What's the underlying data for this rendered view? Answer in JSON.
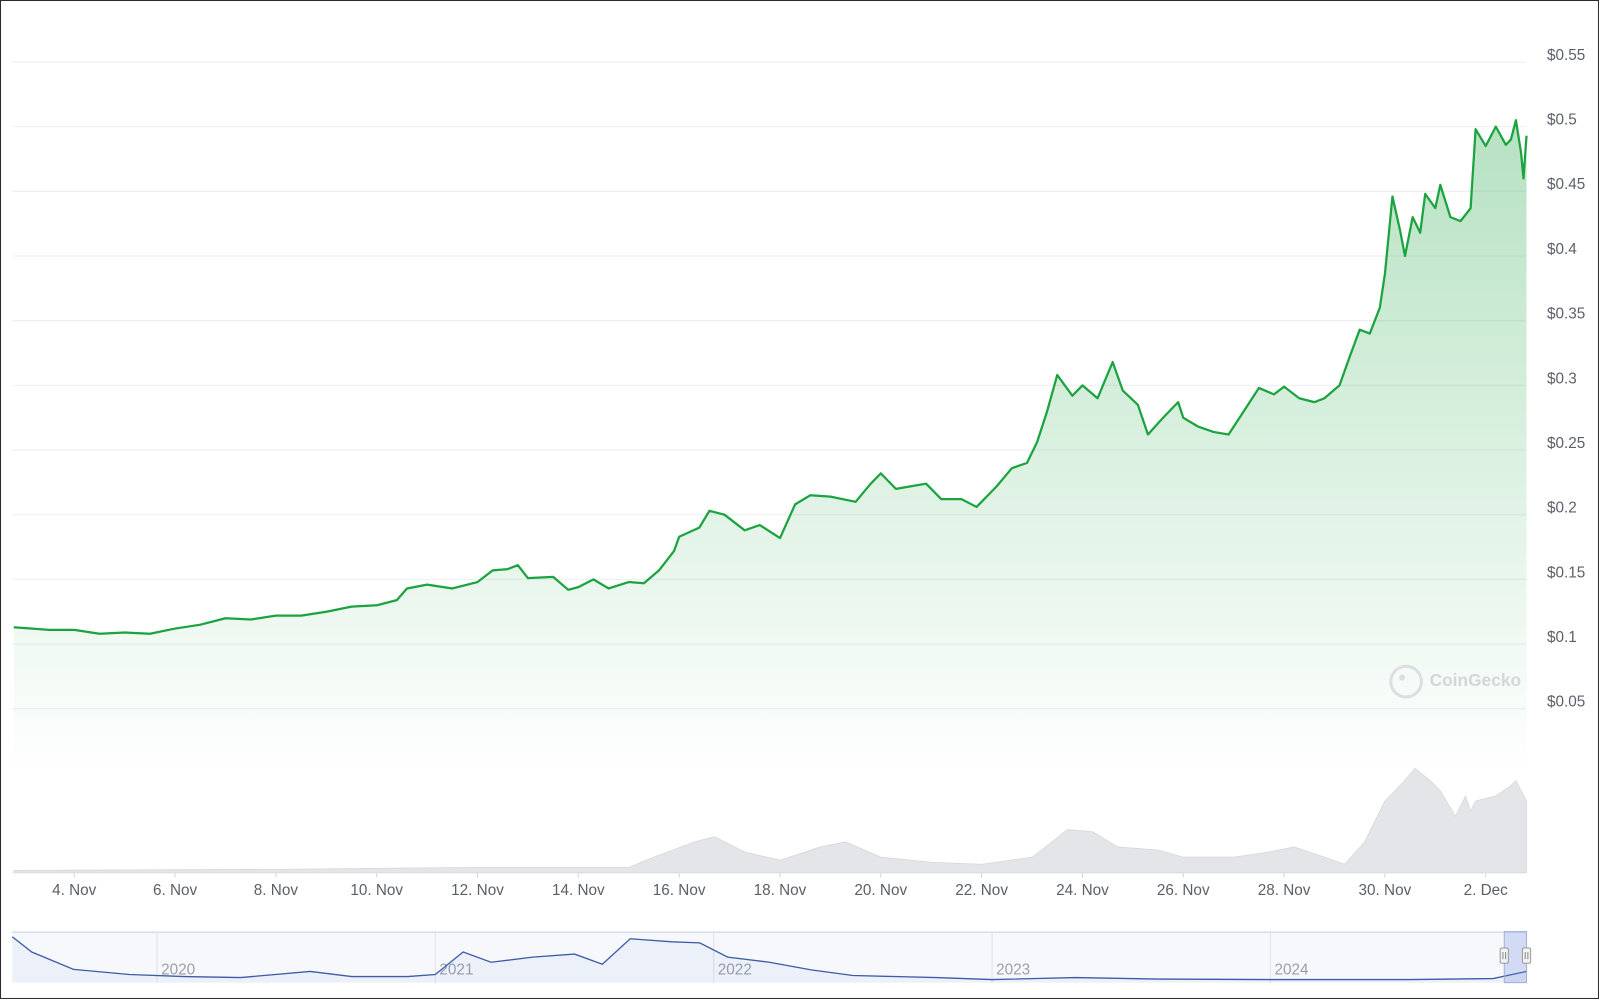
{
  "chart_data": [
    {
      "type": "line",
      "watermark": "CoinGecko",
      "xlim": [
        2.77,
        32.81
      ],
      "xticks": [
        {
          "value": 4,
          "label": "4. Nov"
        },
        {
          "value": 6,
          "label": "6. Nov"
        },
        {
          "value": 8,
          "label": "8. Nov"
        },
        {
          "value": 10,
          "label": "10. Nov"
        },
        {
          "value": 12,
          "label": "12. Nov"
        },
        {
          "value": 14,
          "label": "14. Nov"
        },
        {
          "value": 16,
          "label": "16. Nov"
        },
        {
          "value": 18,
          "label": "18. Nov"
        },
        {
          "value": 20,
          "label": "20. Nov"
        },
        {
          "value": 22,
          "label": "22. Nov"
        },
        {
          "value": 24,
          "label": "24. Nov"
        },
        {
          "value": 26,
          "label": "26. Nov"
        },
        {
          "value": 28,
          "label": "28. Nov"
        },
        {
          "value": 30,
          "label": "30. Nov"
        },
        {
          "value": 32,
          "label": "2. Dec"
        }
      ],
      "ylim": [
        0,
        0.59
      ],
      "yticks": [
        {
          "value": 0.05,
          "label": "$0.05"
        },
        {
          "value": 0.1,
          "label": "$0.1"
        },
        {
          "value": 0.15,
          "label": "$0.15"
        },
        {
          "value": 0.2,
          "label": "$0.2"
        },
        {
          "value": 0.25,
          "label": "$0.25"
        },
        {
          "value": 0.3,
          "label": "$0.3"
        },
        {
          "value": 0.35,
          "label": "$0.35"
        },
        {
          "value": 0.4,
          "label": "$0.4"
        },
        {
          "value": 0.45,
          "label": "$0.45"
        },
        {
          "value": 0.5,
          "label": "$0.5"
        },
        {
          "value": 0.55,
          "label": "$0.55"
        }
      ],
      "y2lim": [
        0,
        110
      ],
      "grid": true,
      "series": [
        {
          "color": "#1aa33f",
          "style": "line",
          "x": [
            2.8,
            3.5,
            4,
            4.5,
            5,
            5.5,
            6,
            6.5,
            7,
            7.5,
            8,
            8.5,
            9,
            9.5,
            10,
            10.4,
            10.6,
            11,
            11.5,
            12,
            12.3,
            12.6,
            12.8,
            13,
            13.5,
            13.8,
            14,
            14.3,
            14.6,
            15,
            15.3,
            15.6,
            15.9,
            16,
            16.4,
            16.6,
            16.9,
            17.3,
            17.6,
            18,
            18.3,
            18.6,
            19,
            19.5,
            19.8,
            20,
            20.3,
            20.6,
            20.9,
            21.2,
            21.6,
            21.9,
            22,
            22.3,
            22.6,
            22.9,
            23.1,
            23.3,
            23.5,
            23.8,
            24,
            24.3,
            24.6,
            24.8,
            25.1,
            25.3,
            25.6,
            25.9,
            26,
            26.3,
            26.6,
            26.9,
            27.2,
            27.5,
            27.8,
            28,
            28.3,
            28.6,
            28.8,
            29.1,
            29.3,
            29.5,
            29.7,
            29.9,
            30,
            30.15,
            30.3,
            30.4,
            30.55,
            30.7,
            30.8,
            31,
            31.1,
            31.3,
            31.5,
            31.7,
            31.8,
            32,
            32.2,
            32.4,
            32.5,
            32.6,
            32.7,
            32.75,
            32.81
          ],
          "values": [
            0.113,
            0.111,
            0.111,
            0.108,
            0.109,
            0.108,
            0.112,
            0.115,
            0.12,
            0.119,
            0.122,
            0.122,
            0.125,
            0.129,
            0.13,
            0.134,
            0.143,
            0.146,
            0.143,
            0.148,
            0.157,
            0.158,
            0.161,
            0.151,
            0.152,
            0.142,
            0.144,
            0.15,
            0.143,
            0.148,
            0.147,
            0.157,
            0.172,
            0.183,
            0.19,
            0.203,
            0.2,
            0.188,
            0.192,
            0.182,
            0.208,
            0.215,
            0.214,
            0.21,
            0.224,
            0.232,
            0.22,
            0.222,
            0.224,
            0.212,
            0.212,
            0.206,
            0.21,
            0.222,
            0.236,
            0.24,
            0.256,
            0.28,
            0.308,
            0.292,
            0.3,
            0.29,
            0.318,
            0.296,
            0.285,
            0.262,
            0.275,
            0.287,
            0.275,
            0.268,
            0.264,
            0.262,
            0.28,
            0.298,
            0.293,
            0.299,
            0.29,
            0.287,
            0.29,
            0.3,
            0.322,
            0.343,
            0.34,
            0.36,
            0.386,
            0.446,
            0.42,
            0.4,
            0.43,
            0.418,
            0.448,
            0.437,
            0.455,
            0.43,
            0.427,
            0.437,
            0.498,
            0.485,
            0.5,
            0.486,
            0.49,
            0.505,
            0.48,
            0.46,
            0.493
          ]
        },
        {
          "color": "#e4e5e8",
          "style": "area",
          "axis": "y2",
          "x": [
            2.8,
            8,
            12,
            15,
            15.5,
            16.3,
            16.7,
            17.3,
            18,
            18.8,
            19.3,
            20,
            21,
            22,
            23,
            23.4,
            23.7,
            24.2,
            24.7,
            25.5,
            26,
            27,
            27.7,
            28.2,
            28.8,
            29.2,
            29.6,
            30,
            30.3,
            30.6,
            30.9,
            31.1,
            31.4,
            31.6,
            31.7,
            31.8,
            32.2,
            32.5,
            32.6,
            32.81
          ],
          "values": [
            2,
            3,
            5,
            5,
            15,
            30,
            35,
            20,
            12,
            25,
            30,
            15,
            10,
            8,
            15,
            30,
            42,
            40,
            25,
            22,
            15,
            15,
            20,
            25,
            15,
            8,
            30,
            70,
            85,
            102,
            90,
            80,
            55,
            75,
            60,
            70,
            75,
            85,
            90,
            70
          ]
        }
      ]
    },
    {
      "type": "navigator",
      "xlim": [
        2019.48,
        2024.92
      ],
      "xticks": [
        2020,
        2021,
        2022,
        2023,
        2024
      ],
      "ylim": [
        0,
        1
      ],
      "range": [
        2024.84,
        2024.92
      ],
      "series": [
        {
          "color": "#3d5ba8",
          "style": "line",
          "x": [
            2019.48,
            2019.55,
            2019.7,
            2019.9,
            2020.1,
            2020.3,
            2020.55,
            2020.7,
            2020.9,
            2021.0,
            2021.1,
            2021.2,
            2021.35,
            2021.5,
            2021.6,
            2021.7,
            2021.85,
            2021.95,
            2022.05,
            2022.2,
            2022.35,
            2022.5,
            2022.8,
            2023.0,
            2023.3,
            2023.6,
            2024.0,
            2024.5,
            2024.8,
            2024.92
          ],
          "values": [
            0.9,
            0.6,
            0.26,
            0.16,
            0.12,
            0.1,
            0.22,
            0.12,
            0.12,
            0.16,
            0.6,
            0.4,
            0.5,
            0.56,
            0.36,
            0.86,
            0.8,
            0.78,
            0.5,
            0.4,
            0.25,
            0.14,
            0.1,
            0.06,
            0.1,
            0.07,
            0.06,
            0.06,
            0.08,
            0.22
          ]
        }
      ]
    }
  ]
}
